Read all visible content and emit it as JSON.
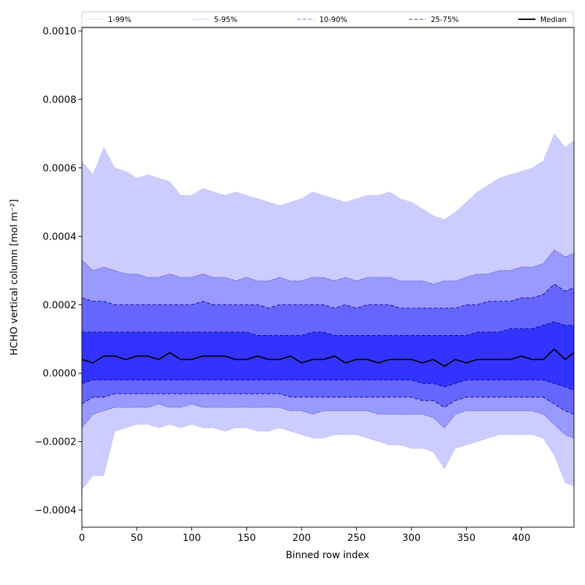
{
  "chart_data": {
    "type": "area",
    "title": "",
    "xlabel": "Binned row index",
    "ylabel": "HCHO vertical column [mol m⁻²]",
    "xlim": [
      0,
      448
    ],
    "ylim": [
      -0.00045,
      0.00101
    ],
    "xticks": [
      0,
      50,
      100,
      150,
      200,
      250,
      300,
      350,
      400
    ],
    "xtick_labels": [
      "0",
      "50",
      "100",
      "150",
      "200",
      "250",
      "300",
      "350",
      "400"
    ],
    "yticks": [
      -0.0004,
      -0.0002,
      0.0,
      0.0002,
      0.0004,
      0.0006,
      0.0008,
      0.001
    ],
    "ytick_labels": [
      "−0.0004",
      "−0.0002",
      "0.0000",
      "0.0002",
      "0.0004",
      "0.0006",
      "0.0008",
      "0.0010"
    ],
    "grid": false,
    "legend_position": "top",
    "x": [
      0,
      10,
      20,
      30,
      40,
      50,
      60,
      70,
      80,
      90,
      100,
      110,
      120,
      130,
      140,
      150,
      160,
      170,
      180,
      190,
      200,
      210,
      220,
      230,
      240,
      250,
      260,
      270,
      280,
      290,
      300,
      310,
      320,
      330,
      340,
      350,
      360,
      370,
      380,
      390,
      400,
      410,
      420,
      430,
      440,
      448
    ],
    "series": [
      {
        "name": "1-99%",
        "color": "#ccccff",
        "style": "dotted",
        "upper": [
          0.00062,
          0.00058,
          0.00066,
          0.0006,
          0.00059,
          0.00057,
          0.00058,
          0.00057,
          0.00056,
          0.00052,
          0.00052,
          0.00054,
          0.00053,
          0.00052,
          0.00053,
          0.00052,
          0.00051,
          0.0005,
          0.00049,
          0.0005,
          0.00051,
          0.00053,
          0.00052,
          0.00051,
          0.0005,
          0.00051,
          0.00052,
          0.00052,
          0.00053,
          0.00051,
          0.0005,
          0.00048,
          0.00046,
          0.00045,
          0.00047,
          0.0005,
          0.00053,
          0.00055,
          0.00057,
          0.00058,
          0.00059,
          0.0006,
          0.00062,
          0.0007,
          0.00066,
          0.00068
        ],
        "lower": [
          -0.00034,
          -0.0003,
          -0.0003,
          -0.00017,
          -0.00016,
          -0.00015,
          -0.00015,
          -0.00016,
          -0.00015,
          -0.00016,
          -0.00015,
          -0.00016,
          -0.00016,
          -0.00017,
          -0.00016,
          -0.00016,
          -0.00017,
          -0.00017,
          -0.00016,
          -0.00017,
          -0.00018,
          -0.00019,
          -0.00019,
          -0.00018,
          -0.00018,
          -0.00018,
          -0.00019,
          -0.0002,
          -0.00021,
          -0.00021,
          -0.00022,
          -0.00022,
          -0.00023,
          -0.00028,
          -0.00022,
          -0.00021,
          -0.0002,
          -0.00019,
          -0.00018,
          -0.00018,
          -0.00018,
          -0.00018,
          -0.00019,
          -0.00024,
          -0.00032,
          -0.00033
        ]
      },
      {
        "name": "5-95%",
        "color": "#9999ff",
        "style": "dotted",
        "upper": [
          0.00033,
          0.0003,
          0.00031,
          0.0003,
          0.00029,
          0.00029,
          0.00028,
          0.00028,
          0.00029,
          0.00028,
          0.00028,
          0.00029,
          0.00028,
          0.00028,
          0.00027,
          0.00028,
          0.00027,
          0.00027,
          0.00028,
          0.00027,
          0.00027,
          0.00028,
          0.00028,
          0.00027,
          0.00028,
          0.00027,
          0.00028,
          0.00028,
          0.00028,
          0.00027,
          0.00027,
          0.00027,
          0.00026,
          0.00027,
          0.00027,
          0.00028,
          0.00029,
          0.00029,
          0.0003,
          0.0003,
          0.00031,
          0.00031,
          0.00032,
          0.00036,
          0.00034,
          0.00035
        ],
        "lower": [
          -0.00016,
          -0.00012,
          -0.00011,
          -0.0001,
          -0.0001,
          -0.0001,
          -0.0001,
          -9e-05,
          -0.0001,
          -0.0001,
          -9e-05,
          -0.0001,
          -0.0001,
          -0.0001,
          -0.0001,
          -0.0001,
          -0.0001,
          -0.0001,
          -0.0001,
          -0.00011,
          -0.00011,
          -0.00012,
          -0.00011,
          -0.00011,
          -0.00011,
          -0.00011,
          -0.00011,
          -0.00012,
          -0.00012,
          -0.00012,
          -0.00012,
          -0.00012,
          -0.00013,
          -0.00016,
          -0.00012,
          -0.00011,
          -0.00011,
          -0.00011,
          -0.00011,
          -0.00011,
          -0.00011,
          -0.00011,
          -0.00012,
          -0.00015,
          -0.00018,
          -0.00019
        ]
      },
      {
        "name": "10-90%",
        "color": "#6666ff",
        "style": "dashed",
        "upper": [
          0.00022,
          0.00021,
          0.00021,
          0.0002,
          0.0002,
          0.0002,
          0.0002,
          0.0002,
          0.0002,
          0.0002,
          0.0002,
          0.00021,
          0.0002,
          0.0002,
          0.0002,
          0.0002,
          0.0002,
          0.00019,
          0.0002,
          0.0002,
          0.0002,
          0.0002,
          0.0002,
          0.00019,
          0.0002,
          0.00019,
          0.0002,
          0.0002,
          0.0002,
          0.00019,
          0.00019,
          0.00019,
          0.00019,
          0.00019,
          0.00019,
          0.0002,
          0.0002,
          0.00021,
          0.00021,
          0.00021,
          0.00022,
          0.00022,
          0.00023,
          0.00026,
          0.00024,
          0.00025
        ],
        "lower": [
          -9e-05,
          -7e-05,
          -7e-05,
          -6e-05,
          -6e-05,
          -6e-05,
          -6e-05,
          -6e-05,
          -6e-05,
          -6e-05,
          -6e-05,
          -6e-05,
          -6e-05,
          -6e-05,
          -6e-05,
          -6e-05,
          -6e-05,
          -6e-05,
          -6e-05,
          -7e-05,
          -7e-05,
          -7e-05,
          -7e-05,
          -7e-05,
          -7e-05,
          -7e-05,
          -7e-05,
          -7e-05,
          -7e-05,
          -7e-05,
          -7e-05,
          -8e-05,
          -8e-05,
          -0.0001,
          -8e-05,
          -7e-05,
          -7e-05,
          -7e-05,
          -7e-05,
          -7e-05,
          -7e-05,
          -7e-05,
          -7e-05,
          -9e-05,
          -0.00011,
          -0.00012
        ]
      },
      {
        "name": "25-75%",
        "color": "#3333ff",
        "style": "dashed",
        "upper": [
          0.00012,
          0.00012,
          0.00012,
          0.00012,
          0.00012,
          0.00012,
          0.00012,
          0.00012,
          0.00012,
          0.00012,
          0.00012,
          0.00012,
          0.00012,
          0.00012,
          0.00012,
          0.00012,
          0.00011,
          0.00011,
          0.00011,
          0.00011,
          0.00011,
          0.00012,
          0.00012,
          0.00011,
          0.00011,
          0.00011,
          0.00011,
          0.00011,
          0.00011,
          0.00011,
          0.00011,
          0.00011,
          0.00011,
          0.00011,
          0.00011,
          0.00011,
          0.00012,
          0.00012,
          0.00012,
          0.00013,
          0.00013,
          0.00013,
          0.00014,
          0.00015,
          0.00014,
          0.00014
        ],
        "lower": [
          -3e-05,
          -2e-05,
          -2e-05,
          -2e-05,
          -2e-05,
          -2e-05,
          -2e-05,
          -2e-05,
          -2e-05,
          -2e-05,
          -2e-05,
          -2e-05,
          -2e-05,
          -2e-05,
          -2e-05,
          -2e-05,
          -2e-05,
          -2e-05,
          -2e-05,
          -2e-05,
          -2e-05,
          -2e-05,
          -2e-05,
          -2e-05,
          -2e-05,
          -2e-05,
          -2e-05,
          -2e-05,
          -2e-05,
          -2e-05,
          -2e-05,
          -3e-05,
          -3e-05,
          -4e-05,
          -3e-05,
          -2e-05,
          -2e-05,
          -2e-05,
          -2e-05,
          -2e-05,
          -2e-05,
          -2e-05,
          -2e-05,
          -3e-05,
          -4e-05,
          -5e-05
        ]
      },
      {
        "name": "Median",
        "color": "#000000",
        "style": "solid",
        "values": [
          4e-05,
          3e-05,
          5e-05,
          5e-05,
          4e-05,
          5e-05,
          5e-05,
          4e-05,
          6e-05,
          4e-05,
          4e-05,
          5e-05,
          5e-05,
          5e-05,
          4e-05,
          4e-05,
          5e-05,
          4e-05,
          4e-05,
          5e-05,
          3e-05,
          4e-05,
          4e-05,
          5e-05,
          3e-05,
          4e-05,
          4e-05,
          3e-05,
          4e-05,
          4e-05,
          4e-05,
          3e-05,
          4e-05,
          2e-05,
          4e-05,
          3e-05,
          4e-05,
          4e-05,
          4e-05,
          4e-05,
          5e-05,
          4e-05,
          4e-05,
          7e-05,
          4e-05,
          6e-05
        ]
      }
    ]
  }
}
